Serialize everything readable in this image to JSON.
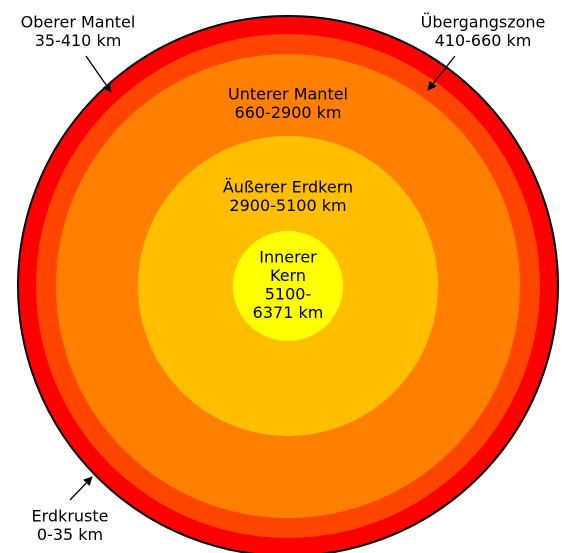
{
  "labels": [
    {
      "lines": [
        "Oberer Mantel",
        "35-410 km"
      ]
    },
    {
      "lines": [
        "Übergangszone",
        "410-660 km"
      ]
    },
    {
      "lines": [
        "Unterer Mantel",
        "660-2900 km"
      ]
    },
    {
      "lines": [
        "Äußerer Erdkern",
        "2900-5100 km"
      ]
    },
    {
      "lines": [
        "Innerer",
        "Kern",
        "5100-",
        "6371 km"
      ]
    },
    {
      "lines": [
        "Erdkruste",
        "0-35 km"
      ]
    }
  ]
}
